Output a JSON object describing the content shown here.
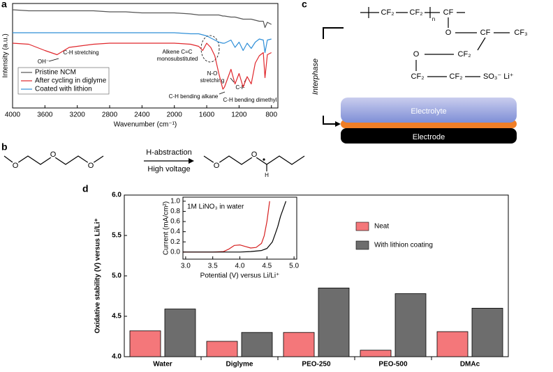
{
  "panel_labels": [
    "a",
    "b",
    "c",
    "d"
  ],
  "chart_data": [
    {
      "type": "line",
      "x_label": "Wavenumber (cm⁻¹)",
      "y_label": "Intensity (a.u.)",
      "x": [
        4000,
        3800,
        3600,
        3450,
        3300,
        3000,
        2800,
        2600,
        2400,
        2200,
        2000,
        1800,
        1700,
        1650,
        1600,
        1550,
        1500,
        1450,
        1400,
        1380,
        1300,
        1250,
        1200,
        1150,
        1100,
        1050,
        1000,
        950,
        900,
        880,
        850,
        800
      ],
      "xlim": [
        4000,
        720
      ],
      "xticks": [
        4000,
        3600,
        3200,
        2800,
        2400,
        2000,
        1600,
        1200,
        800
      ],
      "ylim": [
        0,
        100
      ],
      "legend": "lower left",
      "series": [
        {
          "name": "Pristine NCM",
          "color": "#555555",
          "values": [
            94,
            93,
            93,
            93,
            93,
            93,
            92,
            92,
            91,
            91,
            91,
            90,
            89,
            89,
            89,
            89,
            89,
            89,
            88,
            88,
            87,
            87,
            86,
            85,
            85,
            85,
            84,
            83,
            83,
            77,
            82,
            80
          ]
        },
        {
          "name": "After cycling in diglyme",
          "color": "#e0262b",
          "values": [
            62,
            61,
            55,
            51,
            58,
            61,
            62,
            62,
            62,
            62,
            62,
            61,
            59,
            55,
            62,
            58,
            50,
            33,
            18,
            20,
            37,
            23,
            33,
            20,
            30,
            23,
            43,
            50,
            53,
            29,
            51,
            53
          ]
        },
        {
          "name": "Coated with lithion",
          "color": "#2f8fd8",
          "values": [
            72,
            72,
            72,
            72,
            72,
            72,
            72,
            72,
            72,
            72,
            72,
            71,
            71,
            70,
            69,
            67,
            65,
            63,
            62,
            62,
            65,
            58,
            63,
            55,
            62,
            57,
            63,
            66,
            65,
            53,
            65,
            66
          ]
        }
      ],
      "annotations": [
        "OH⁻",
        "C-H stretching",
        "Alkene C=C",
        "monosubstituted",
        "N-O",
        "stretching",
        "C-F",
        "C-H bending alkane",
        "C-H bending dimethyl"
      ]
    },
    {
      "type": "bar",
      "y_label": "Oxidative stability (V) versus Li/Li⁺",
      "categories": [
        "Water",
        "Diglyme",
        "PEO-250",
        "PEO-500",
        "DMAc"
      ],
      "ylim": [
        4,
        6
      ],
      "yticks": [
        {
          "value": 4,
          "label": "4.0"
        },
        4.5,
        {
          "value": 5,
          "label": "5.0"
        },
        5.5,
        {
          "value": 6,
          "label": "6.0"
        }
      ],
      "legend": "upper right",
      "series": [
        {
          "name": "Neat",
          "color": "#f4777a",
          "values": [
            4.32,
            4.19,
            4.3,
            4.08,
            4.31
          ]
        },
        {
          "name": "With lithion coating",
          "color": "#6d6d6d",
          "values": [
            4.59,
            4.3,
            4.85,
            4.78,
            4.6
          ]
        }
      ]
    },
    {
      "type": "line",
      "annotation": "1M LiNO₃ in water",
      "x_label": "Potential (V) versus Li/Li⁺",
      "y_label": "Current (mA/cm²)",
      "xlim": [
        2.95,
        5.05
      ],
      "xticks": [
        {
          "value": 3,
          "label": "3.0"
        },
        3.5,
        {
          "value": 4,
          "label": "4.0"
        },
        4.5,
        {
          "value": 5,
          "label": "5.0"
        }
      ],
      "ylim": [
        -0.14,
        1.08
      ],
      "yticks": [
        {
          "value": 0,
          "label": "0.0"
        },
        0.2,
        0.4,
        0.6,
        0.8,
        {
          "value": 1,
          "label": "1.0"
        }
      ],
      "series": [
        {
          "color": "#d62020",
          "x": [
            2.95,
            3.5,
            3.7,
            3.8,
            3.9,
            4.0,
            4.1,
            4.2,
            4.3,
            4.4,
            4.45,
            4.5,
            4.55
          ],
          "values": [
            0,
            0,
            0.01,
            0.06,
            0.13,
            0.14,
            0.11,
            0.08,
            0.09,
            0.17,
            0.32,
            0.6,
            1.0
          ]
        },
        {
          "color": "#000000",
          "x": [
            2.95,
            4.0,
            4.2,
            4.4,
            4.5,
            4.6,
            4.65,
            4.7,
            4.75,
            4.8,
            4.85
          ],
          "values": [
            0,
            0,
            0.01,
            0.03,
            0.07,
            0.2,
            0.35,
            0.5,
            0.7,
            0.85,
            1.0
          ]
        }
      ]
    }
  ],
  "reaction": {
    "above": "H-abstraction",
    "below": "High voltage",
    "reactant_atoms": [
      "O",
      "O",
      "O"
    ],
    "product_atoms": [
      "O",
      "O",
      "H"
    ]
  },
  "polymer": {
    "groups": [
      "CF₂",
      "CF₂",
      "n",
      "CF",
      "O",
      "CF",
      "CF₃",
      "O",
      "CF₂",
      "CF₂",
      "CF₂",
      "SO₃⁻ Li⁺"
    ]
  },
  "layers": {
    "side_label": "Interphase",
    "electrolyte": "Electrolyte",
    "electrode": "Electrode"
  }
}
